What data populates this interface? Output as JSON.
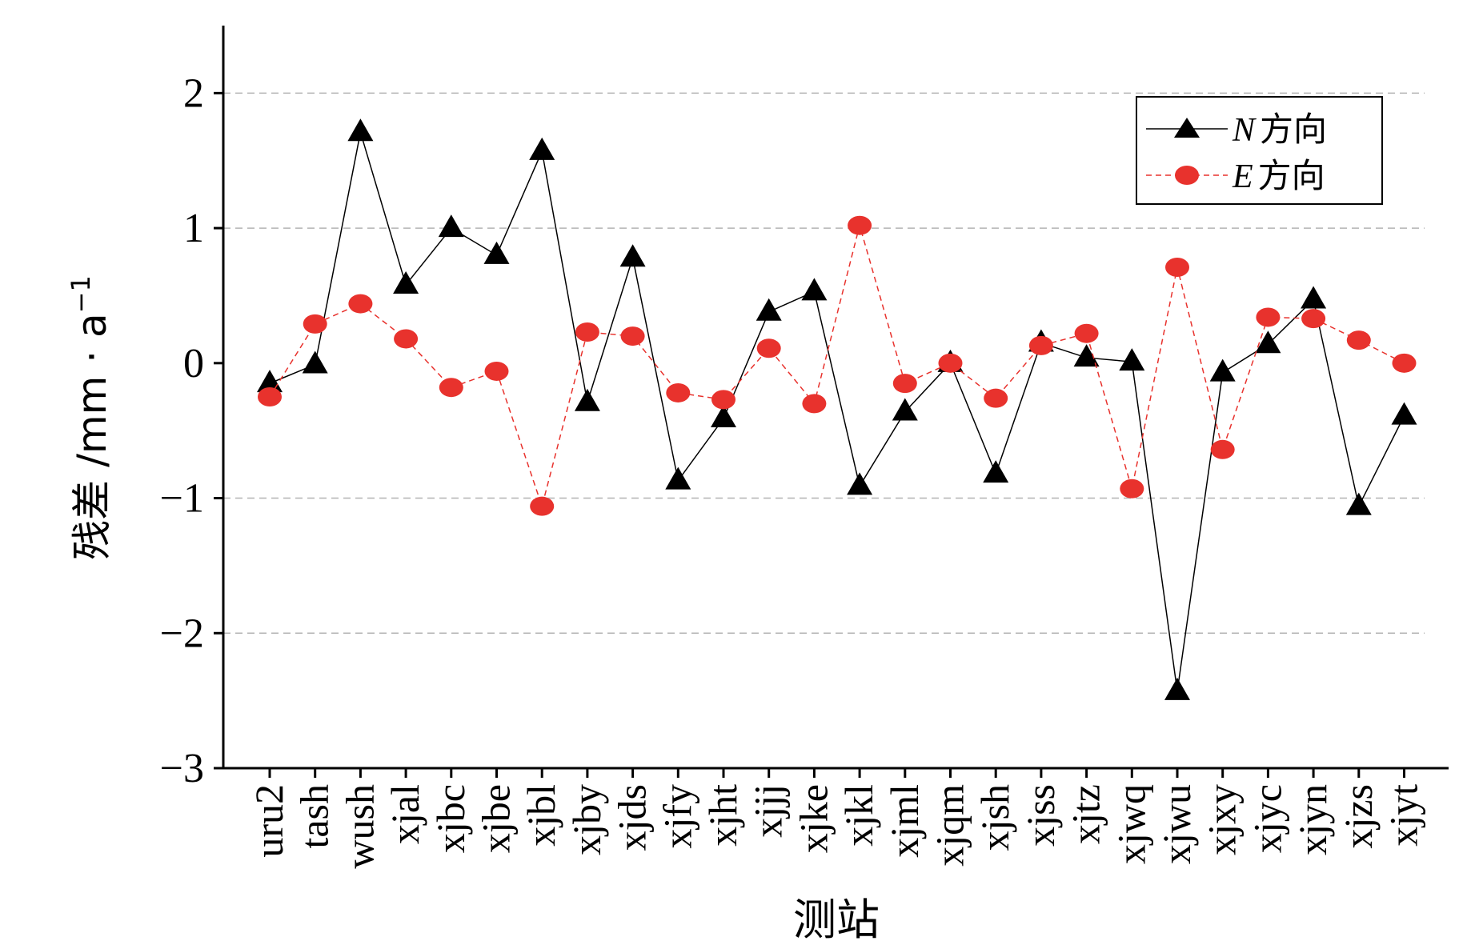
{
  "chart_data": {
    "type": "line",
    "xlabel": "测站",
    "ylabel_main": "残差 /mm · a",
    "ylabel_sup": "−1",
    "categories": [
      "uru2",
      "tash",
      "wush",
      "xjal",
      "xjbc",
      "xjbe",
      "xjbl",
      "xjby",
      "xjds",
      "xjfy",
      "xjht",
      "xjjj",
      "xjke",
      "xjkl",
      "xjml",
      "xjqm",
      "xjsh",
      "xjss",
      "xjtz",
      "xjwq",
      "xjwu",
      "xjxy",
      "xjyc",
      "xjyn",
      "xjzs",
      "xjyt"
    ],
    "ylim": [
      -3,
      2.5
    ],
    "yticks": [
      -3,
      -2,
      -1,
      0,
      1,
      2
    ],
    "ytick_labels": [
      "−3",
      "−2",
      "−1",
      "0",
      "1",
      "2"
    ],
    "gridlines": [
      -2,
      -1,
      1,
      2
    ],
    "legend_position": "top-right",
    "series": [
      {
        "name_italic": "N",
        "name_suffix": "方向",
        "marker": "triangle",
        "line": "solid",
        "color": "#000000",
        "values": [
          -0.15,
          -0.01,
          1.71,
          0.58,
          1.0,
          0.8,
          1.57,
          -0.29,
          0.78,
          -0.87,
          -0.41,
          0.38,
          0.53,
          -0.91,
          -0.36,
          0.0,
          -0.82,
          0.15,
          0.04,
          0.01,
          -2.43,
          -0.07,
          0.14,
          0.47,
          -1.06,
          -0.39
        ]
      },
      {
        "name_italic": "E",
        "name_suffix": "方向",
        "marker": "circle",
        "line": "dashed",
        "color": "#e8322d",
        "values": [
          -0.25,
          0.29,
          0.44,
          0.18,
          -0.18,
          -0.06,
          -1.06,
          0.23,
          0.2,
          -0.22,
          -0.27,
          0.11,
          -0.3,
          1.02,
          -0.15,
          0.0,
          -0.26,
          0.13,
          0.22,
          -0.93,
          0.71,
          -0.64,
          0.34,
          0.33,
          0.17,
          0.0
        ]
      }
    ]
  }
}
